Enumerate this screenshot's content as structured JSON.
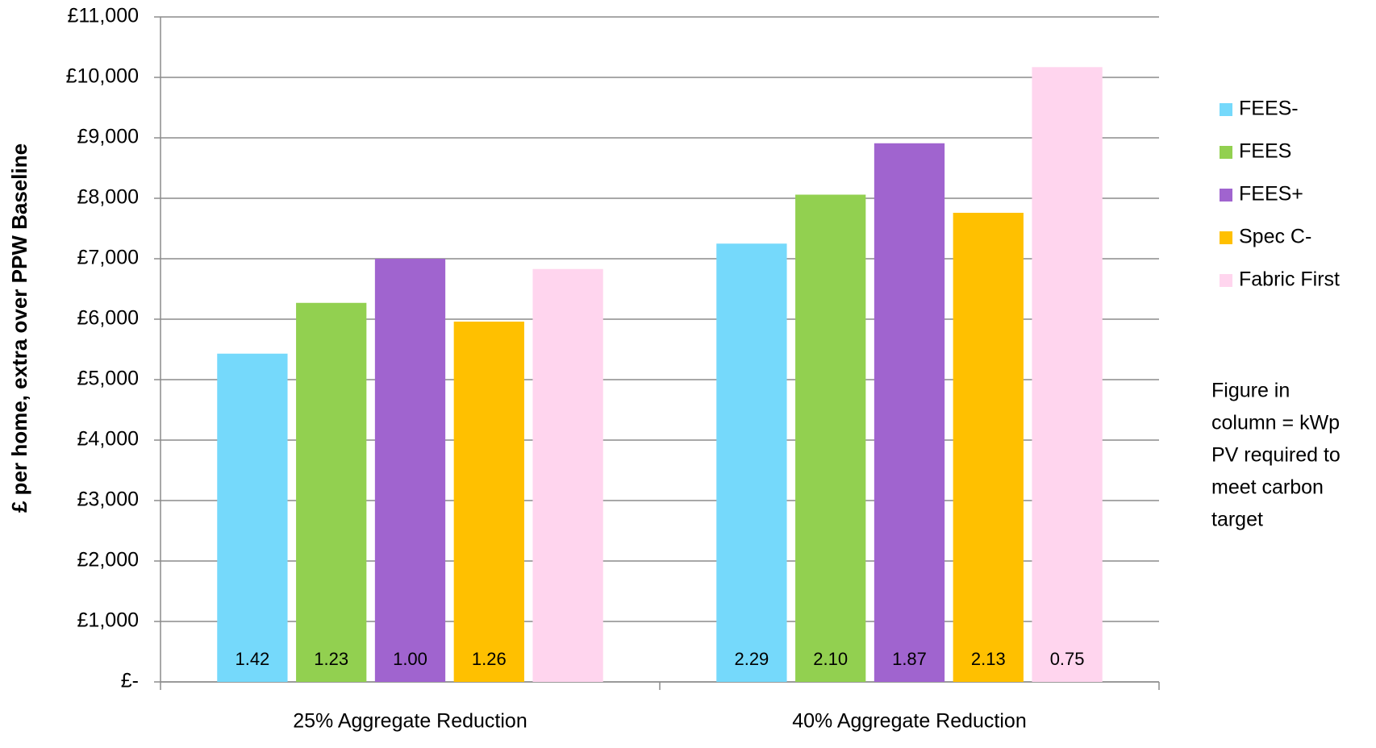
{
  "chart_data": {
    "type": "bar",
    "y_label": "£ per home, extra over PPW Baseline",
    "categories": [
      "25% Aggregate Reduction",
      "40% Aggregate Reduction"
    ],
    "series": [
      {
        "name": "FEES-",
        "color": "#75d9fb",
        "values": [
          5430,
          7250
        ],
        "pv_labels": [
          "1.42",
          "2.29"
        ]
      },
      {
        "name": "FEES",
        "color": "#92d050",
        "values": [
          6270,
          8060
        ],
        "pv_labels": [
          "1.23",
          "2.10"
        ]
      },
      {
        "name": "FEES+",
        "color": "#a064cf",
        "values": [
          7000,
          8910
        ],
        "pv_labels": [
          "1.00",
          "1.87"
        ]
      },
      {
        "name": "Spec C-",
        "color": "#ffc000",
        "values": [
          5960,
          7760
        ],
        "pv_labels": [
          "1.26",
          "2.13"
        ]
      },
      {
        "name": "Fabric First",
        "color": "#ffd5ee",
        "values": [
          6830,
          10170
        ],
        "pv_labels": [
          null,
          "0.75"
        ]
      }
    ],
    "ylim": [
      0,
      11000
    ],
    "yticks": [
      {
        "value": 0,
        "label": "£-"
      },
      {
        "value": 1000,
        "label": "£1,000"
      },
      {
        "value": 2000,
        "label": "£2,000"
      },
      {
        "value": 3000,
        "label": "£3,000"
      },
      {
        "value": 4000,
        "label": "£4,000"
      },
      {
        "value": 5000,
        "label": "£5,000"
      },
      {
        "value": 6000,
        "label": "£6,000"
      },
      {
        "value": 7000,
        "label": "£7,000"
      },
      {
        "value": 8000,
        "label": "£8,000"
      },
      {
        "value": 9000,
        "label": "£9,000"
      },
      {
        "value": 10000,
        "label": "£10,000"
      },
      {
        "value": 11000,
        "label": "£11,000"
      }
    ],
    "grid": true,
    "legend": "right",
    "annotation": [
      "Figure in",
      "column = kWp",
      "PV required to",
      "meet carbon",
      "target"
    ]
  }
}
